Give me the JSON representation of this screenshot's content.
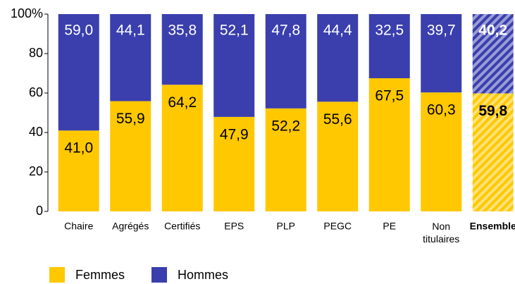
{
  "chart_data": {
    "type": "stacked_bar",
    "categories": [
      "Chaire",
      "Agrégés",
      "Certifiés",
      "EPS",
      "PLP",
      "PEGC",
      "PE",
      "Non titulaires",
      "Ensemble"
    ],
    "series": [
      {
        "name": "Femmes",
        "color": "#ffc800",
        "values": [
          41.0,
          55.9,
          64.2,
          47.9,
          52.2,
          55.6,
          67.5,
          60.3,
          59.8
        ],
        "value_labels": [
          "41,0",
          "55,9",
          "64,2",
          "47,9",
          "52,2",
          "55,6",
          "67,5",
          "60,3",
          "59,8"
        ]
      },
      {
        "name": "Hommes",
        "color": "#3a3fad",
        "values": [
          59.0,
          44.1,
          35.8,
          52.1,
          47.8,
          44.4,
          32.5,
          39.7,
          40.2
        ],
        "value_labels": [
          "59,0",
          "44,1",
          "35,8",
          "52,1",
          "47,8",
          "44,4",
          "32,5",
          "39,7",
          "40,2"
        ]
      }
    ],
    "ylim": [
      0,
      100
    ],
    "yticks": [
      0,
      20,
      40,
      60,
      80,
      {
        "value": 100,
        "label": "100%"
      }
    ],
    "legend": "bottom-left"
  }
}
